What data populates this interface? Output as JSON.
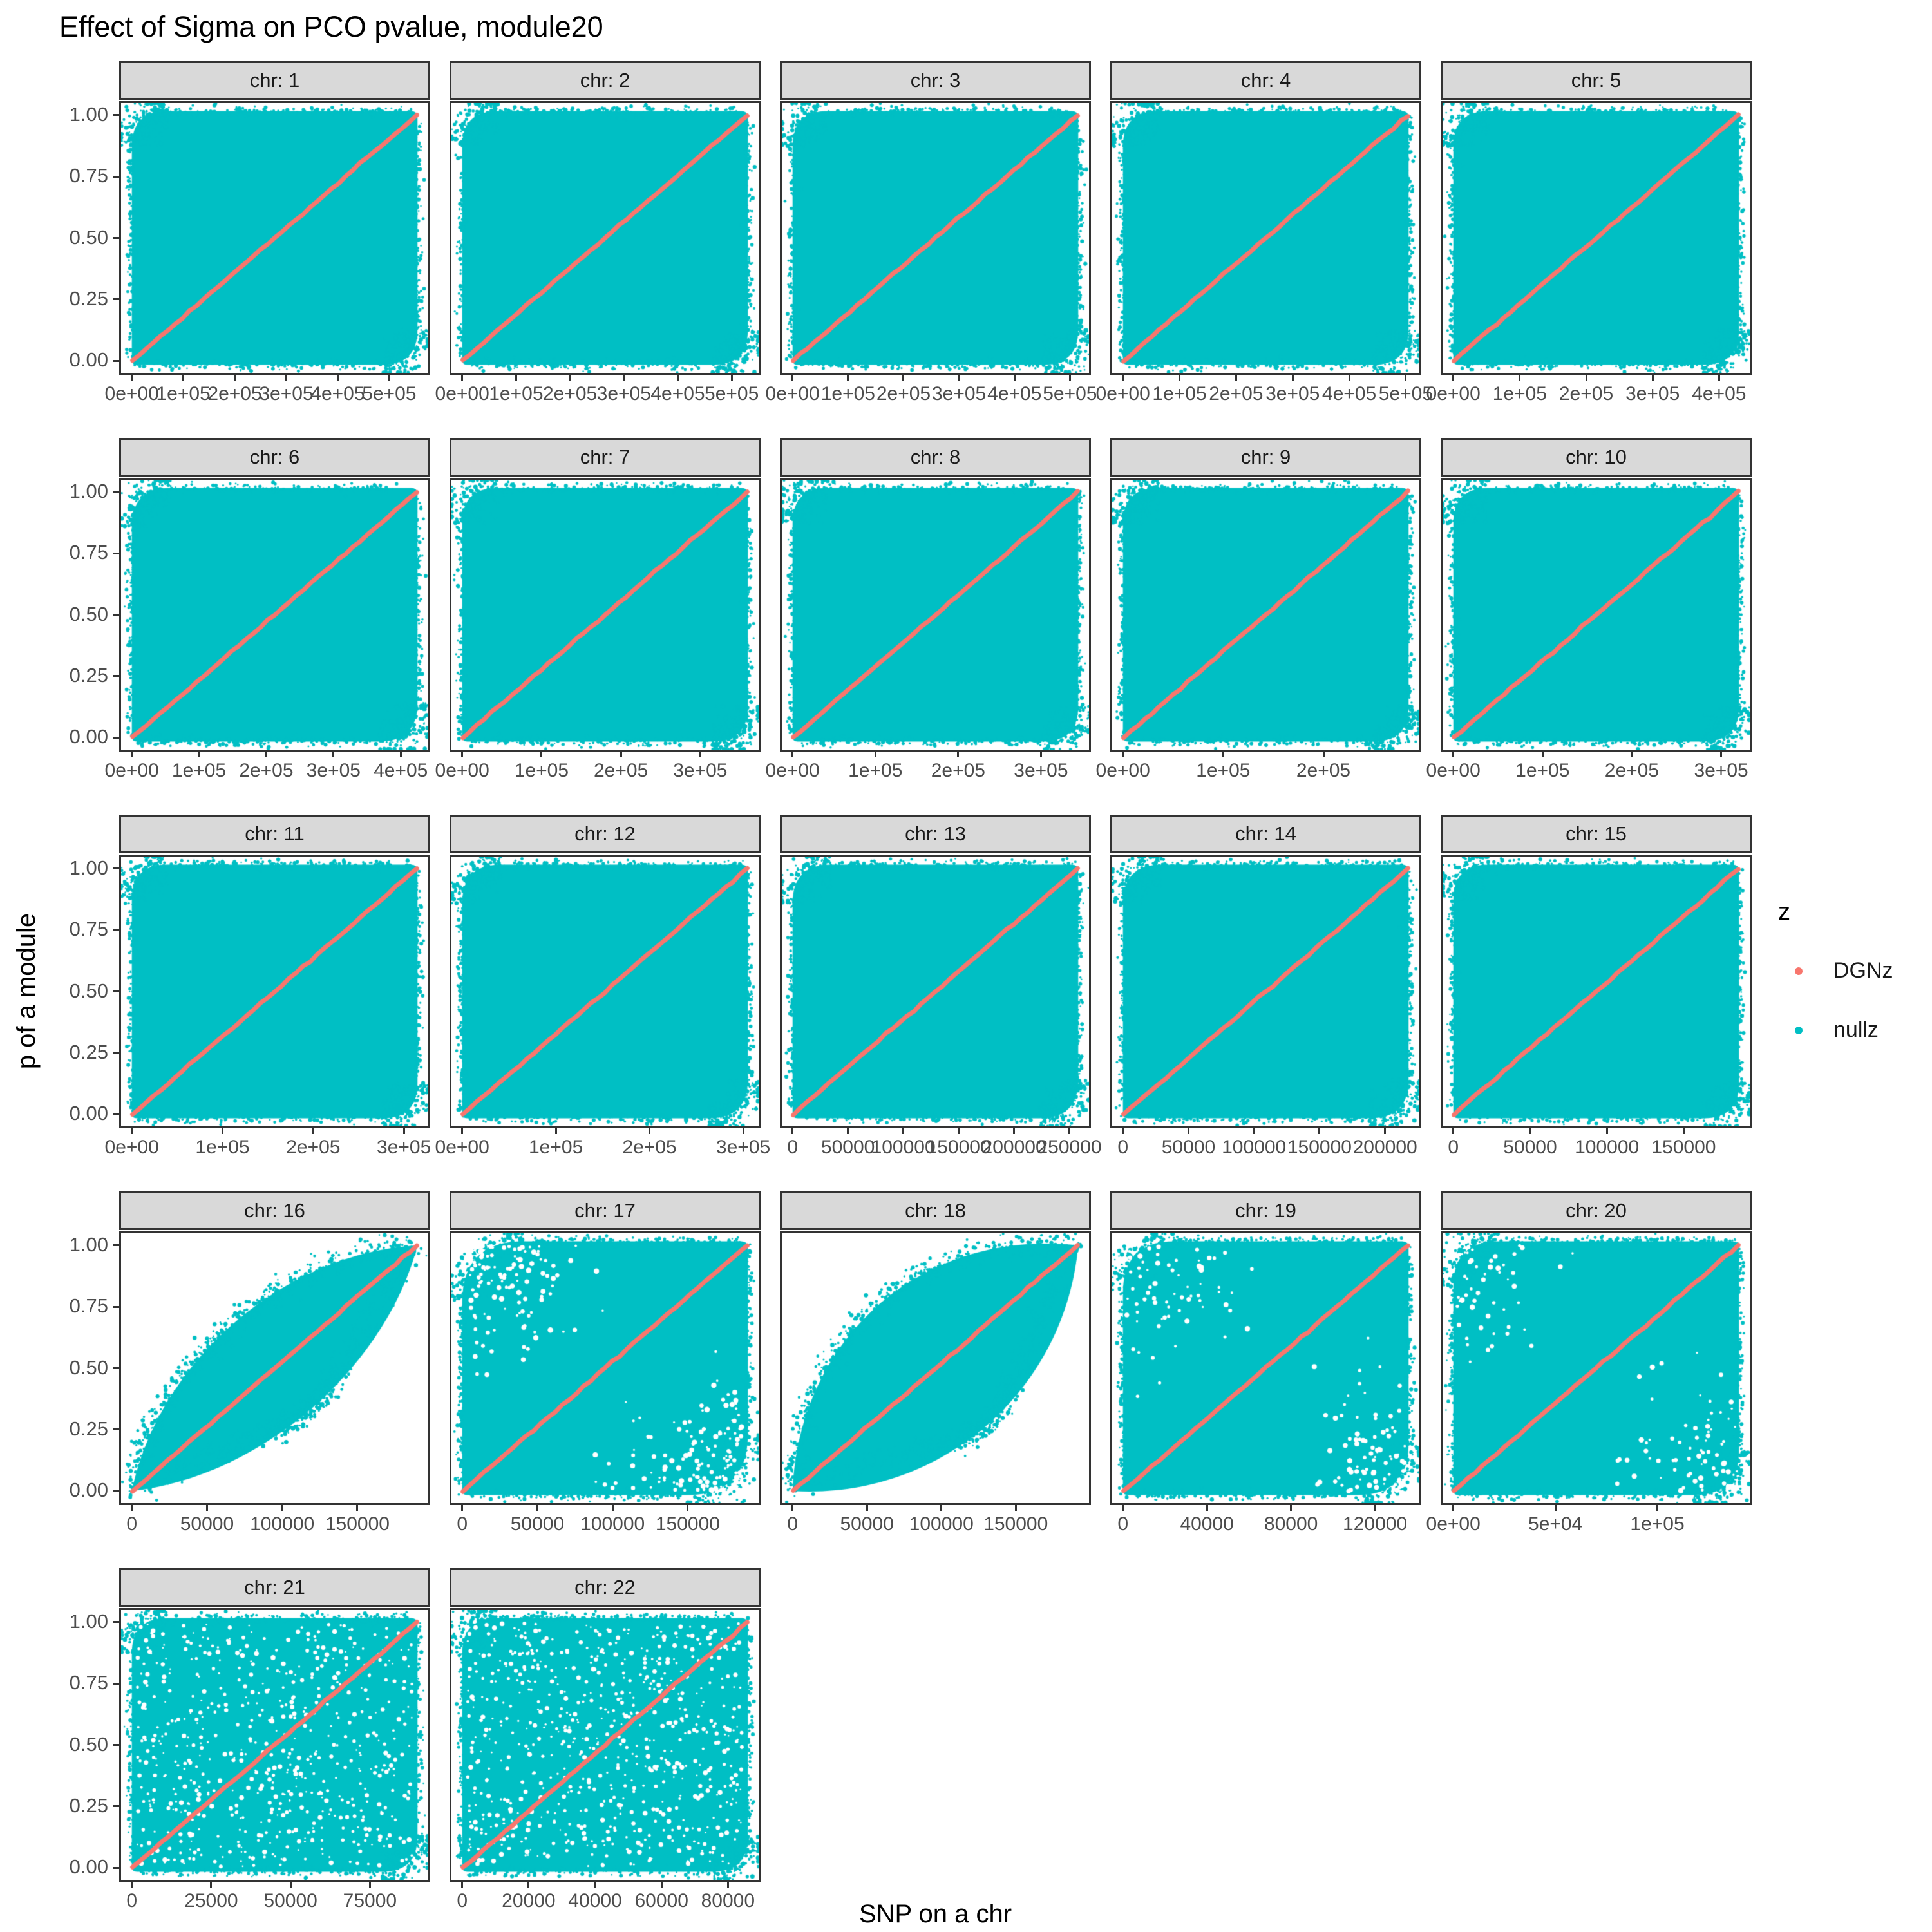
{
  "title": "Effect of Sigma on PCO pvalue, module20",
  "axes": {
    "x_label": "SNP on a chr",
    "y_label": "p of a module",
    "y_tick_labels": [
      "1.00",
      "0.75",
      "0.50",
      "0.25",
      "0.00"
    ],
    "y_tick_values": [
      1,
      0.75,
      0.5,
      0.25,
      0
    ]
  },
  "legend": {
    "title": "z",
    "items": [
      {
        "label": "DGNz",
        "color": "#F8766D"
      },
      {
        "label": "nullz",
        "color": "#00BFC4"
      }
    ]
  },
  "colors": {
    "dgnz": "#F8766D",
    "nullz": "#00BFC4",
    "strip_bg": "#D9D9D9",
    "border": "#333333",
    "tick_text": "#4D4D4D"
  },
  "chart_data": {
    "type": "scatter",
    "title": "Effect of Sigma on PCO pvalue, module20",
    "xlabel": "SNP on a chr",
    "ylabel": "p of a module",
    "facet_variable": "chr",
    "ylim": [
      0,
      1
    ],
    "y_ticks": [
      0,
      0.25,
      0.5,
      0.75,
      1
    ],
    "legend_position": "right",
    "grid": "off",
    "series_semantics": {
      "nullz": "teal point cloud: permutation-null p-values spread over the full [0, n_SNP] x [0, 1] region of each chromosome panel",
      "DGNz": "salmon points forming the diagonal reference y = rank(SNP)/n_SNP from (0,0) to (n_SNP,1) in every panel"
    },
    "facets": [
      {
        "label": "chr: 1",
        "x_max": 555000,
        "x_ticks": [
          "0e+00",
          "1e+05",
          "2e+05",
          "3e+05",
          "4e+05",
          "5e+05"
        ],
        "x_tick_values": [
          0,
          100000,
          200000,
          300000,
          400000,
          500000
        ],
        "shape": "full",
        "corner": 55
      },
      {
        "label": "chr: 2",
        "x_max": 530000,
        "x_ticks": [
          "0e+00",
          "1e+05",
          "2e+05",
          "3e+05",
          "4e+05",
          "5e+05"
        ],
        "x_tick_values": [
          0,
          100000,
          200000,
          300000,
          400000,
          500000
        ],
        "shape": "full",
        "corner": 55
      },
      {
        "label": "chr: 3",
        "x_max": 515000,
        "x_ticks": [
          "0e+00",
          "1e+05",
          "2e+05",
          "3e+05",
          "4e+05",
          "5e+05"
        ],
        "x_tick_values": [
          0,
          100000,
          200000,
          300000,
          400000,
          500000
        ],
        "shape": "full",
        "corner": 55
      },
      {
        "label": "chr: 4",
        "x_max": 505000,
        "x_ticks": [
          "0e+00",
          "1e+05",
          "2e+05",
          "3e+05",
          "4e+05",
          "5e+05"
        ],
        "x_tick_values": [
          0,
          100000,
          200000,
          300000,
          400000,
          500000
        ],
        "shape": "full",
        "corner": 55
      },
      {
        "label": "chr: 5",
        "x_max": 430000,
        "x_ticks": [
          "0e+00",
          "1e+05",
          "2e+05",
          "3e+05",
          "4e+05"
        ],
        "x_tick_values": [
          0,
          100000,
          200000,
          300000,
          400000
        ],
        "shape": "full",
        "corner": 55
      },
      {
        "label": "chr: 6",
        "x_max": 425000,
        "x_ticks": [
          "0e+00",
          "1e+05",
          "2e+05",
          "3e+05",
          "4e+05"
        ],
        "x_tick_values": [
          0,
          100000,
          200000,
          300000,
          400000
        ],
        "shape": "full",
        "corner": 60
      },
      {
        "label": "chr: 7",
        "x_max": 360000,
        "x_ticks": [
          "0e+00",
          "1e+05",
          "2e+05",
          "3e+05"
        ],
        "x_tick_values": [
          0,
          100000,
          200000,
          300000
        ],
        "shape": "full",
        "corner": 55
      },
      {
        "label": "chr: 8",
        "x_max": 345000,
        "x_ticks": [
          "0e+00",
          "1e+05",
          "2e+05",
          "3e+05"
        ],
        "x_tick_values": [
          0,
          100000,
          200000,
          300000
        ],
        "shape": "full",
        "corner": 55
      },
      {
        "label": "chr: 9",
        "x_max": 285000,
        "x_ticks": [
          "0e+00",
          "1e+05",
          "2e+05"
        ],
        "x_tick_values": [
          0,
          100000,
          200000
        ],
        "shape": "full",
        "corner": 55
      },
      {
        "label": "chr: 10",
        "x_max": 320000,
        "x_ticks": [
          "0e+00",
          "1e+05",
          "2e+05",
          "3e+05"
        ],
        "x_tick_values": [
          0,
          100000,
          200000,
          300000
        ],
        "shape": "full",
        "corner": 55
      },
      {
        "label": "chr: 11",
        "x_max": 315000,
        "x_ticks": [
          "0e+00",
          "1e+05",
          "2e+05",
          "3e+05"
        ],
        "x_tick_values": [
          0,
          100000,
          200000,
          300000
        ],
        "shape": "full",
        "corner": 55
      },
      {
        "label": "chr: 12",
        "x_max": 305000,
        "x_ticks": [
          "0e+00",
          "1e+05",
          "2e+05",
          "3e+05"
        ],
        "x_tick_values": [
          0,
          100000,
          200000,
          300000
        ],
        "shape": "full",
        "corner": 60
      },
      {
        "label": "chr: 13",
        "x_max": 258000,
        "x_ticks": [
          "0",
          "50000",
          "100000",
          "150000",
          "200000",
          "250000"
        ],
        "x_tick_values": [
          0,
          50000,
          100000,
          150000,
          200000,
          250000
        ],
        "shape": "full",
        "corner": 60
      },
      {
        "label": "chr: 14",
        "x_max": 218000,
        "x_ticks": [
          "0",
          "50000",
          "100000",
          "150000",
          "200000"
        ],
        "x_tick_values": [
          0,
          50000,
          100000,
          150000,
          200000
        ],
        "shape": "full",
        "corner": 60
      },
      {
        "label": "chr: 15",
        "x_max": 186000,
        "x_ticks": [
          "0",
          "50000",
          "100000",
          "150000"
        ],
        "x_tick_values": [
          0,
          50000,
          100000,
          150000
        ],
        "shape": "full",
        "corner": 55
      },
      {
        "label": "chr: 16",
        "x_max": 190000,
        "x_ticks": [
          "0",
          "50000",
          "100000",
          "150000"
        ],
        "x_tick_values": [
          0,
          50000,
          100000,
          150000
        ],
        "shape": "lens",
        "bulge_up": 0.3,
        "bulge_dn": 0.27
      },
      {
        "label": "chr: 17",
        "x_max": 190000,
        "x_ticks": [
          "0",
          "50000",
          "100000",
          "150000"
        ],
        "x_tick_values": [
          0,
          50000,
          100000,
          150000
        ],
        "shape": "full",
        "corner": 95,
        "erode": 260
      },
      {
        "label": "chr: 18",
        "x_max": 192000,
        "x_ticks": [
          "0",
          "50000",
          "100000",
          "150000"
        ],
        "x_tick_values": [
          0,
          50000,
          100000,
          150000
        ],
        "shape": "lens",
        "bulge_up": 0.42,
        "bulge_dn": 0.38
      },
      {
        "label": "chr: 19",
        "x_max": 136000,
        "x_ticks": [
          "0",
          "40000",
          "80000",
          "120000"
        ],
        "x_tick_values": [
          0,
          40000,
          80000,
          120000
        ],
        "shape": "full",
        "corner": 80,
        "erode": 150
      },
      {
        "label": "chr: 20",
        "x_max": 140000,
        "x_ticks": [
          "0e+00",
          "5e+04",
          "1e+05"
        ],
        "x_tick_values": [
          0,
          50000,
          100000
        ],
        "shape": "full",
        "corner": 70,
        "erode": 120
      },
      {
        "label": "chr: 21",
        "x_max": 90000,
        "x_ticks": [
          "0",
          "25000",
          "50000",
          "75000"
        ],
        "x_tick_values": [
          0,
          25000,
          50000,
          75000
        ],
        "shape": "sparse",
        "corner": 55,
        "holes": 620
      },
      {
        "label": "chr: 22",
        "x_max": 86000,
        "x_ticks": [
          "0",
          "20000",
          "40000",
          "60000",
          "80000"
        ],
        "x_tick_values": [
          0,
          20000,
          40000,
          60000,
          80000
        ],
        "shape": "sparse",
        "corner": 55,
        "holes": 700
      }
    ]
  }
}
